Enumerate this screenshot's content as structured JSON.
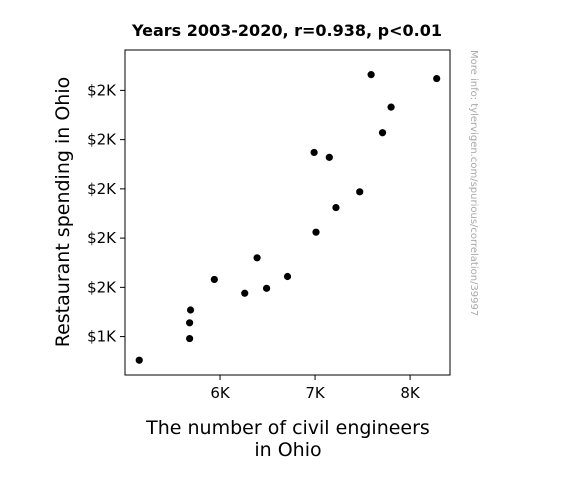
{
  "chart_data": {
    "type": "scatter",
    "title": "Years 2003-2020, r=0.938, p<0.01",
    "xlabel_lines": [
      "The number of civil engineers",
      "in Ohio"
    ],
    "ylabel": "Restaurant spending in Ohio",
    "x_ticks": [
      {
        "value": 6000,
        "label": "6K"
      },
      {
        "value": 7000,
        "label": "7K"
      },
      {
        "value": 8000,
        "label": "8K"
      }
    ],
    "y_ticks": [
      {
        "value": 1250,
        "label": "$1K"
      },
      {
        "value": 1500,
        "label": "$2K"
      },
      {
        "value": 1750,
        "label": "$2K"
      },
      {
        "value": 2000,
        "label": "$2K"
      },
      {
        "value": 2250,
        "label": "$2K"
      },
      {
        "value": 2500,
        "label": "$2K"
      }
    ],
    "xlim": [
      5000,
      8420
    ],
    "ylim": [
      1055,
      2705
    ],
    "grid": false,
    "marker_color": "#000000",
    "points": [
      {
        "x": 5150,
        "y": 1130
      },
      {
        "x": 5680,
        "y": 1240
      },
      {
        "x": 5680,
        "y": 1320
      },
      {
        "x": 5690,
        "y": 1385
      },
      {
        "x": 5940,
        "y": 1540
      },
      {
        "x": 6260,
        "y": 1470
      },
      {
        "x": 6390,
        "y": 1650
      },
      {
        "x": 6490,
        "y": 1495
      },
      {
        "x": 6710,
        "y": 1555
      },
      {
        "x": 7010,
        "y": 1780
      },
      {
        "x": 7220,
        "y": 1905
      },
      {
        "x": 7470,
        "y": 1985
      },
      {
        "x": 6990,
        "y": 2185
      },
      {
        "x": 7150,
        "y": 2160
      },
      {
        "x": 7710,
        "y": 2285
      },
      {
        "x": 7800,
        "y": 2415
      },
      {
        "x": 7590,
        "y": 2580
      },
      {
        "x": 8280,
        "y": 2560
      }
    ]
  },
  "source_note": "More info: tylervigen.com/spurious/correlation/39997"
}
